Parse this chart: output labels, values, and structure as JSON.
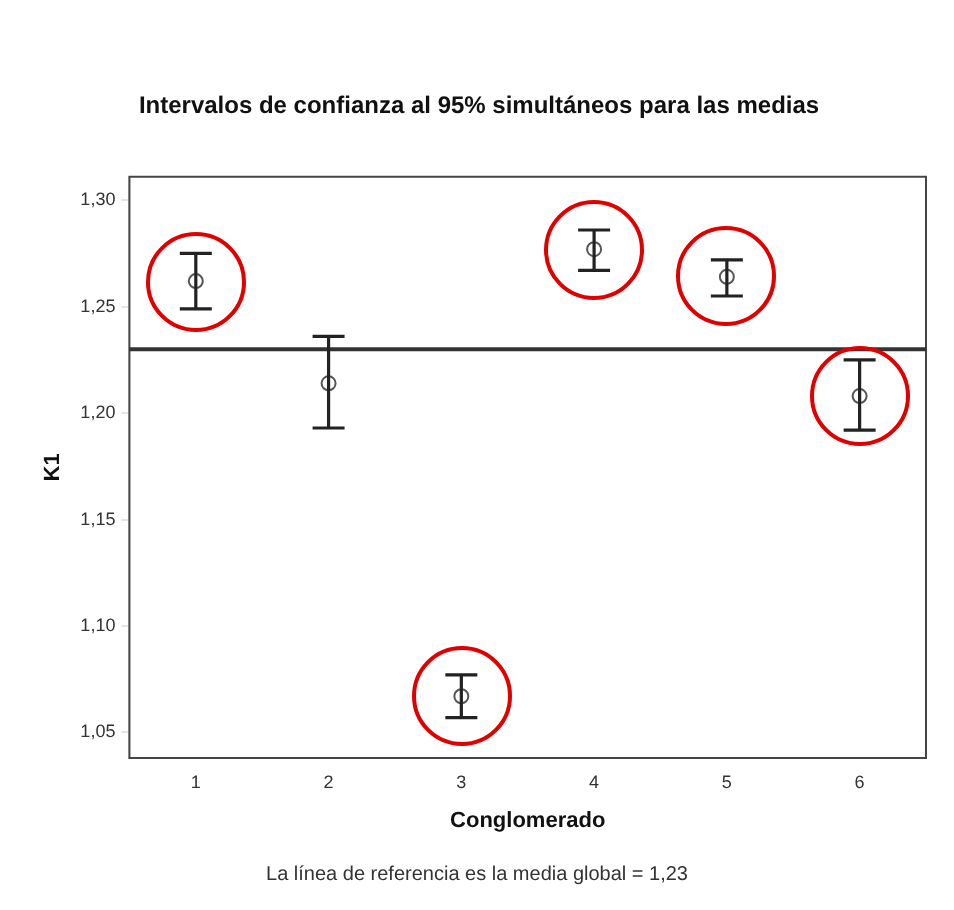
{
  "chart_data": {
    "type": "scatter",
    "title": "Intervalos de confianza al 95% simultáneos para las medias",
    "xlabel": "Conglomerado",
    "ylabel": "K1",
    "categories": [
      "1",
      "2",
      "3",
      "4",
      "5",
      "6"
    ],
    "series": [
      {
        "color": "#555555",
        "values": [
          1.262,
          1.214,
          1.067,
          1.277,
          1.264,
          1.208
        ],
        "errors": [
          [
            1.249,
            1.275
          ],
          [
            1.193,
            1.236
          ],
          [
            1.057,
            1.077
          ],
          [
            1.267,
            1.286
          ],
          [
            1.255,
            1.272
          ],
          [
            1.192,
            1.225
          ]
        ]
      }
    ],
    "ylim": [
      1.038,
      1.311
    ],
    "yticks": [
      {
        "value": 1.05,
        "label": "1,05"
      },
      {
        "value": 1.1,
        "label": "1,10"
      },
      {
        "value": 1.15,
        "label": "1,15"
      },
      {
        "value": 1.2,
        "label": "1,20"
      },
      {
        "value": 1.25,
        "label": "1,25"
      },
      {
        "value": 1.3,
        "label": "1,30"
      }
    ],
    "ref_lines": [
      {
        "axis": "y",
        "value": 1.23,
        "color": "#333333"
      }
    ],
    "annotations": [
      "La línea de referencia es la media global = 1,23"
    ],
    "grid": false,
    "legend": false,
    "marker": "circle"
  }
}
